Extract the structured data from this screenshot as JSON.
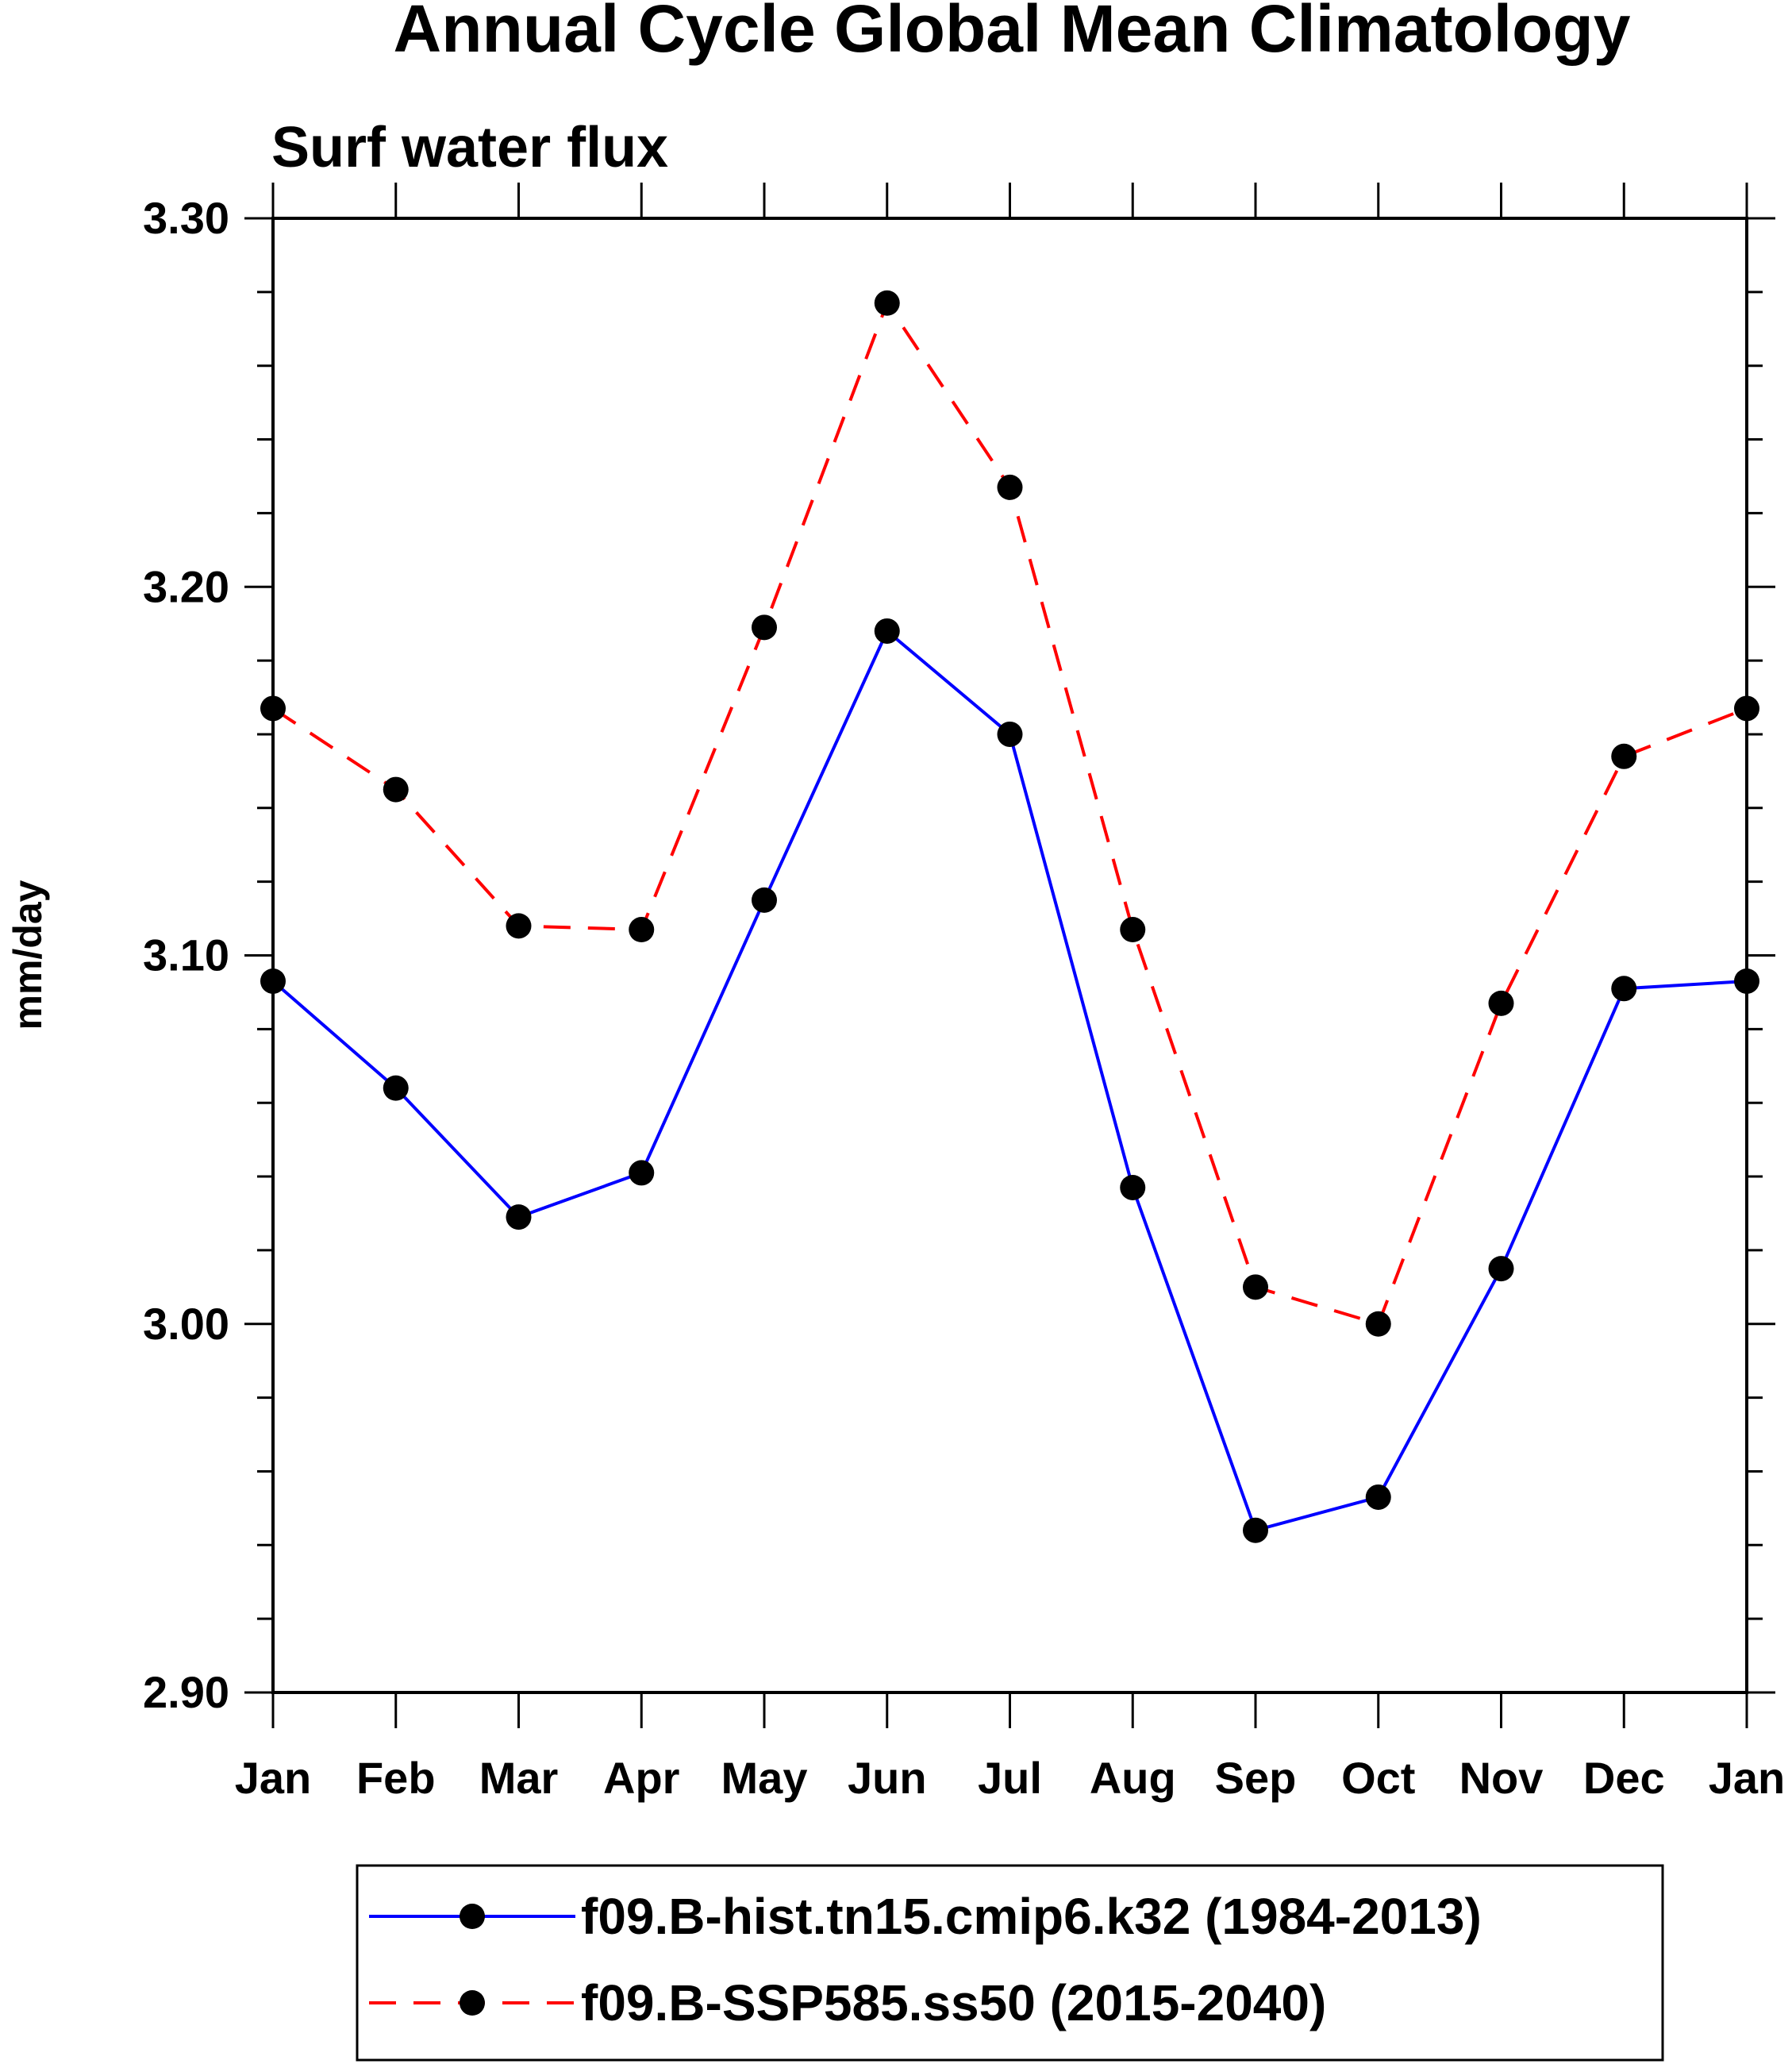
{
  "chart_data": {
    "type": "line",
    "title": "Annual Cycle Global Mean Climatology",
    "subtitle": "Surf water flux",
    "xlabel": "",
    "ylabel": "mm/day",
    "ylim": [
      2.9,
      3.3
    ],
    "y_ticks": [
      "2.90",
      "3.00",
      "3.10",
      "3.20",
      "3.30"
    ],
    "categories": [
      "Jan",
      "Feb",
      "Mar",
      "Apr",
      "May",
      "Jun",
      "Jul",
      "Aug",
      "Sep",
      "Oct",
      "Nov",
      "Dec",
      "Jan"
    ],
    "grid": false,
    "legend_position": "bottom-center",
    "series": [
      {
        "name": "f09.B-hist.tn15.cmip6.k32 (1984-2013)",
        "color": "#0000ff",
        "dash": "solid",
        "values": [
          3.093,
          3.064,
          3.029,
          3.041,
          3.115,
          3.188,
          3.16,
          3.037,
          2.944,
          2.953,
          3.015,
          3.091,
          3.093
        ]
      },
      {
        "name": "f09.B-SSP585.ss50 (2015-2040)",
        "color": "#ff0000",
        "dash": "dashed",
        "values": [
          3.167,
          3.145,
          3.108,
          3.107,
          3.189,
          3.277,
          3.227,
          3.107,
          3.01,
          3.0,
          3.087,
          3.154,
          3.167
        ]
      }
    ]
  }
}
